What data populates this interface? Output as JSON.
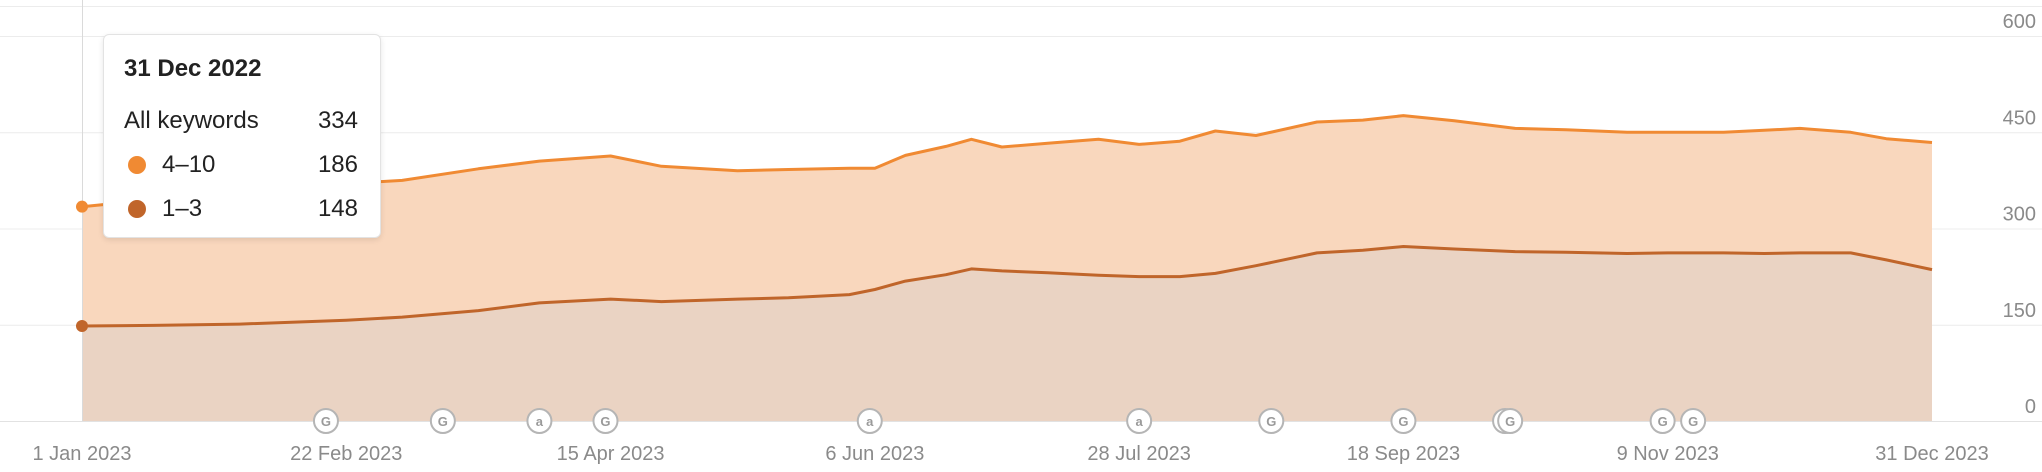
{
  "chart_data": {
    "type": "area",
    "stacked": true,
    "x_ticks": [
      "1 Jan 2023",
      "22 Feb 2023",
      "15 Apr 2023",
      "6 Jun 2023",
      "28 Jul 2023",
      "18 Sep 2023",
      "9 Nov 2023",
      "31 Dec 2023"
    ],
    "y_ticks": [
      "0",
      "150",
      "300",
      "450",
      "600"
    ],
    "ylim": [
      0,
      620
    ],
    "y_axis_position": "right",
    "grid": true,
    "x": [
      "2023-01-01",
      "2023-01-15",
      "2023-02-01",
      "2023-02-22",
      "2023-03-05",
      "2023-03-20",
      "2023-04-01",
      "2023-04-15",
      "2023-04-25",
      "2023-05-10",
      "2023-05-20",
      "2023-06-01",
      "2023-06-06",
      "2023-06-12",
      "2023-06-20",
      "2023-06-25",
      "2023-07-01",
      "2023-07-10",
      "2023-07-20",
      "2023-07-28",
      "2023-08-05",
      "2023-08-12",
      "2023-08-20",
      "2023-09-01",
      "2023-09-10",
      "2023-09-18",
      "2023-09-28",
      "2023-10-10",
      "2023-10-20",
      "2023-11-01",
      "2023-11-09",
      "2023-11-20",
      "2023-11-28",
      "2023-12-05",
      "2023-12-15",
      "2023-12-22",
      "2023-12-31"
    ],
    "series": [
      {
        "name": "1–3",
        "color": "#c0652a",
        "values": [
          148,
          149,
          151,
          157,
          162,
          172,
          184,
          190,
          186,
          190,
          192,
          197,
          205,
          218,
          228,
          237,
          234,
          231,
          227,
          225,
          225,
          230,
          242,
          262,
          266,
          272,
          268,
          264,
          263,
          261,
          262,
          262,
          261,
          262,
          262,
          251,
          236
        ]
      },
      {
        "name": "4–10",
        "color": "#f08a33",
        "values": [
          186,
          196,
          204,
          213,
          213,
          221,
          221,
          223,
          211,
          200,
          200,
          197,
          189,
          196,
          200,
          202,
          193,
          202,
          212,
          206,
          211,
          222,
          203,
          204,
          203,
          204,
          200,
          192,
          191,
          189,
          188,
          188,
          192,
          194,
          188,
          189,
          198
        ]
      }
    ],
    "totals": [
      334,
      345,
      355,
      370,
      375,
      393,
      405,
      413,
      397,
      390,
      392,
      394,
      394,
      414,
      428,
      439,
      427,
      433,
      439,
      431,
      436,
      452,
      445,
      466,
      469,
      476,
      468,
      456,
      454,
      450,
      450,
      450,
      453,
      456,
      450,
      440,
      434
    ],
    "markers": [
      {
        "date": "2023-02-18",
        "icon": "g"
      },
      {
        "date": "2023-03-13",
        "icon": "g"
      },
      {
        "date": "2023-04-01",
        "icon": "a"
      },
      {
        "date": "2023-04-14",
        "icon": "g"
      },
      {
        "date": "2023-06-05",
        "icon": "a"
      },
      {
        "date": "2023-07-28",
        "icon": "a"
      },
      {
        "date": "2023-08-23",
        "icon": "g"
      },
      {
        "date": "2023-09-18",
        "icon": "g"
      },
      {
        "date": "2023-10-08",
        "icon": "g"
      },
      {
        "date": "2023-10-09",
        "icon": "g"
      },
      {
        "date": "2023-11-08",
        "icon": "g"
      },
      {
        "date": "2023-11-14",
        "icon": "g"
      }
    ],
    "tooltip": {
      "date": "31 Dec 2022",
      "rows": [
        {
          "label": "All keywords",
          "value": "334"
        },
        {
          "label": "4–10",
          "value": "186",
          "color": "#f08a33"
        },
        {
          "label": "1–3",
          "value": "148",
          "color": "#c0652a"
        }
      ]
    }
  }
}
